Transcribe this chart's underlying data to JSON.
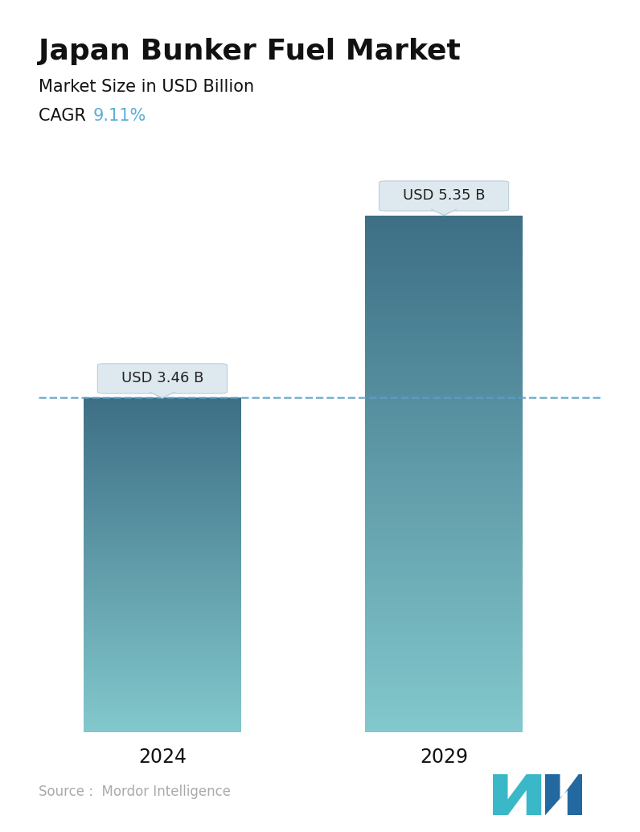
{
  "title": "Japan Bunker Fuel Market",
  "subtitle": "Market Size in USD Billion",
  "cagr_label": "CAGR ",
  "cagr_value": "9.11%",
  "cagr_color": "#5bafd6",
  "categories": [
    "2024",
    "2029"
  ],
  "values": [
    3.46,
    5.35
  ],
  "bar_labels": [
    "USD 3.46 B",
    "USD 5.35 B"
  ],
  "bar_top_color": "#3d6e85",
  "bar_bottom_color": "#82c8cc",
  "dashed_line_color": "#5b9ec9",
  "dashed_line_value": 3.46,
  "source_text": "Source :  Mordor Intelligence",
  "source_color": "#aaaaaa",
  "background_color": "#ffffff",
  "title_fontsize": 26,
  "subtitle_fontsize": 15,
  "cagr_fontsize": 15,
  "bar_label_fontsize": 13,
  "tick_label_fontsize": 17,
  "source_fontsize": 12,
  "ylim": [
    0,
    6.2
  ],
  "bar_width": 0.28,
  "positions": [
    0.22,
    0.72
  ]
}
